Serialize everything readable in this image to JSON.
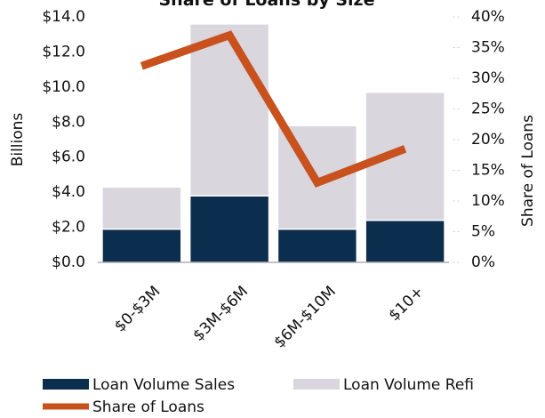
{
  "chart_data": {
    "type": "bar+line",
    "title": "Share of Loans by Size",
    "categories": [
      "$0-$3M",
      "$3M-$6M",
      "$6M-$10M",
      "$10+"
    ],
    "series": [
      {
        "name": "Loan Volume Sales",
        "type": "bar",
        "color": "#0b2e4e",
        "values": [
          1.9,
          3.8,
          1.9,
          2.4
        ]
      },
      {
        "name": "Loan Volume Refi",
        "type": "bar",
        "color": "#d9d6de",
        "values": [
          2.4,
          9.8,
          5.9,
          7.3
        ]
      },
      {
        "name": "Share of Loans",
        "type": "line",
        "axis": "y2",
        "color": "#c8511e",
        "values": [
          32,
          37,
          13,
          18.5
        ]
      }
    ],
    "stacked": true,
    "ylabel": "Billions",
    "y2label": "Share of Loans",
    "ylim": [
      0,
      14
    ],
    "yticks": [
      {
        "value": 0,
        "label": "$0.0"
      },
      {
        "value": 2,
        "label": "$2.0"
      },
      {
        "value": 4,
        "label": "$4.0"
      },
      {
        "value": 6,
        "label": "$6.0"
      },
      {
        "value": 8,
        "label": "$8.0"
      },
      {
        "value": 10,
        "label": "$10.0"
      },
      {
        "value": 12,
        "label": "$12.0"
      },
      {
        "value": 14,
        "label": "$14.0"
      }
    ],
    "y2lim": [
      0,
      40
    ],
    "y2ticks": [
      {
        "value": 0,
        "label": "0%"
      },
      {
        "value": 5,
        "label": "5%"
      },
      {
        "value": 10,
        "label": "10%"
      },
      {
        "value": 15,
        "label": "15%"
      },
      {
        "value": 20,
        "label": "20%"
      },
      {
        "value": 25,
        "label": "25%"
      },
      {
        "value": 30,
        "label": "30%"
      },
      {
        "value": 35,
        "label": "35%"
      },
      {
        "value": 40,
        "label": "40%"
      }
    ],
    "legend": "bottom"
  }
}
